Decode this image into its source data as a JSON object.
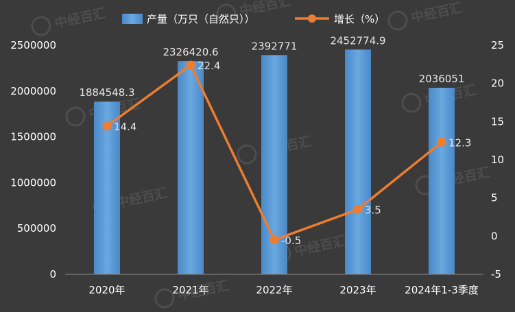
{
  "colors": {
    "background": "#3a3a3a",
    "bar": "#5b9bd5",
    "bar_dark": "#3f7fc0",
    "line": "#ed7d31",
    "text": "#ffffff",
    "label": "#e6e6e6",
    "grid": "#5a5a5a"
  },
  "watermark": "中经百汇",
  "chart_data": {
    "type": "bar",
    "categories": [
      "2020年",
      "2021年",
      "2022年",
      "2023年",
      "2024年1-3季度"
    ],
    "series": [
      {
        "name": "产量（万只（自然只））",
        "type": "bar",
        "axis": "left",
        "values": [
          1884548.3,
          2326420.6,
          2392771,
          2452774.9,
          2036051
        ],
        "labels": [
          "1884548.3",
          "2326420.6",
          "2392771",
          "2452774.9",
          "2036051"
        ]
      },
      {
        "name": "增长（%）",
        "type": "line",
        "axis": "right",
        "values": [
          14.4,
          22.4,
          -0.5,
          3.5,
          12.3
        ],
        "labels": [
          "14.4",
          "22.4",
          "-0.5",
          "3.5",
          "12.3"
        ]
      }
    ],
    "y_left": {
      "min": 0,
      "max": 2500000,
      "ticks": [
        "0",
        "500000",
        "1000000",
        "1500000",
        "2000000",
        "2500000"
      ]
    },
    "y_right": {
      "min": -5,
      "max": 25,
      "ticks": [
        "-5",
        "0",
        "5",
        "10",
        "15",
        "20",
        "25"
      ]
    },
    "grid": false,
    "legend_position": "top"
  }
}
